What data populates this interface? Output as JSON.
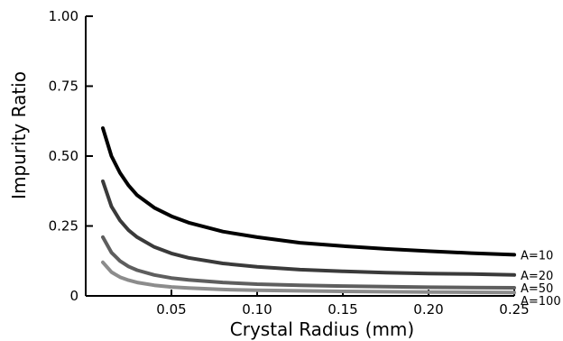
{
  "chart_data": {
    "type": "line",
    "title": "",
    "xlabel": "Crystal Radius (mm)",
    "ylabel": "Impurity Ratio",
    "xlim": [
      0,
      0.25
    ],
    "ylim": [
      0,
      1.0
    ],
    "x_ticks": [
      0.05,
      0.1,
      0.15,
      0.2,
      0.25
    ],
    "x_tick_labels": [
      "0.05",
      "0.10",
      "0.15",
      "0.20",
      "0.25"
    ],
    "y_ticks": [
      0,
      0.25,
      0.5,
      0.75,
      1.0
    ],
    "y_tick_labels": [
      "0",
      "0.25",
      "0.50",
      "0.75",
      "1.00"
    ],
    "grid": false,
    "series": [
      {
        "name": "A=10",
        "color": "#000000",
        "x": [
          0.01,
          0.015,
          0.02,
          0.025,
          0.03,
          0.04,
          0.05,
          0.06,
          0.08,
          0.1,
          0.125,
          0.15,
          0.175,
          0.2,
          0.225,
          0.25
        ],
        "values": [
          0.6,
          0.5,
          0.44,
          0.395,
          0.36,
          0.315,
          0.285,
          0.262,
          0.23,
          0.21,
          0.19,
          0.178,
          0.168,
          0.16,
          0.153,
          0.147
        ]
      },
      {
        "name": "A=20",
        "color": "#3a3a3a",
        "x": [
          0.01,
          0.015,
          0.02,
          0.025,
          0.03,
          0.04,
          0.05,
          0.06,
          0.08,
          0.1,
          0.125,
          0.15,
          0.175,
          0.2,
          0.225,
          0.25
        ],
        "values": [
          0.41,
          0.32,
          0.27,
          0.235,
          0.21,
          0.175,
          0.152,
          0.136,
          0.116,
          0.104,
          0.094,
          0.088,
          0.083,
          0.08,
          0.078,
          0.075
        ]
      },
      {
        "name": "A=50",
        "color": "#5e5e5e",
        "x": [
          0.01,
          0.015,
          0.02,
          0.025,
          0.03,
          0.04,
          0.05,
          0.06,
          0.08,
          0.1,
          0.125,
          0.15,
          0.175,
          0.2,
          0.225,
          0.25
        ],
        "values": [
          0.21,
          0.155,
          0.125,
          0.105,
          0.092,
          0.075,
          0.064,
          0.057,
          0.048,
          0.042,
          0.038,
          0.035,
          0.033,
          0.031,
          0.03,
          0.029
        ]
      },
      {
        "name": "A=100",
        "color": "#8c8c8c",
        "x": [
          0.01,
          0.015,
          0.02,
          0.025,
          0.03,
          0.04,
          0.05,
          0.06,
          0.08,
          0.1,
          0.125,
          0.15,
          0.175,
          0.2,
          0.225,
          0.25
        ],
        "values": [
          0.12,
          0.085,
          0.067,
          0.056,
          0.048,
          0.038,
          0.032,
          0.028,
          0.023,
          0.02,
          0.018,
          0.016,
          0.015,
          0.014,
          0.013,
          0.012
        ]
      }
    ]
  }
}
